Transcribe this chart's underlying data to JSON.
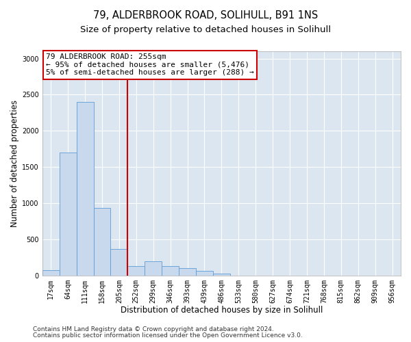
{
  "title1": "79, ALDERBROOK ROAD, SOLIHULL, B91 1NS",
  "title2": "Size of property relative to detached houses in Solihull",
  "xlabel": "Distribution of detached houses by size in Solihull",
  "ylabel": "Number of detached properties",
  "footnote1": "Contains HM Land Registry data © Crown copyright and database right 2024.",
  "footnote2": "Contains public sector information licensed under the Open Government Licence v3.0.",
  "bar_labels": [
    "17sqm",
    "64sqm",
    "111sqm",
    "158sqm",
    "205sqm",
    "252sqm",
    "299sqm",
    "346sqm",
    "393sqm",
    "439sqm",
    "486sqm",
    "533sqm",
    "580sqm",
    "627sqm",
    "674sqm",
    "721sqm",
    "768sqm",
    "815sqm",
    "862sqm",
    "909sqm",
    "956sqm"
  ],
  "bar_values": [
    75,
    1700,
    2400,
    930,
    370,
    130,
    200,
    130,
    100,
    60,
    25,
    0,
    0,
    0,
    0,
    0,
    0,
    0,
    0,
    0,
    0
  ],
  "bar_color": "#c8d9ee",
  "bar_edge_color": "#5b9bd5",
  "vline_x": 5.0,
  "vline_color": "#cc0000",
  "annotation_text": "79 ALDERBROOK ROAD: 255sqm\n← 95% of detached houses are smaller (5,476)\n5% of semi-detached houses are larger (288) →",
  "annotation_box_color": "#cc0000",
  "ylim": [
    0,
    3100
  ],
  "yticks": [
    0,
    500,
    1000,
    1500,
    2000,
    2500,
    3000
  ],
  "background_color": "#dce6f1",
  "title1_fontsize": 10.5,
  "title2_fontsize": 9.5,
  "annotation_fontsize": 8,
  "xlabel_fontsize": 8.5,
  "ylabel_fontsize": 8.5,
  "tick_fontsize": 7,
  "footnote_fontsize": 6.5
}
